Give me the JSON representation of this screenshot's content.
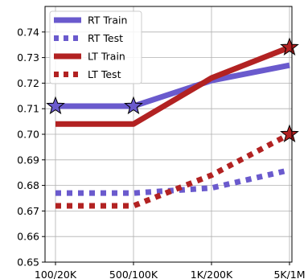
{
  "chart_data": {
    "type": "line",
    "categories": [
      "100/20K",
      "500/100K",
      "1K/200K",
      "5K/1M"
    ],
    "ylim": [
      0.65,
      0.75
    ],
    "yticks": [
      0.65,
      0.66,
      0.67,
      0.68,
      0.69,
      0.7,
      0.71,
      0.72,
      0.73,
      0.74
    ],
    "ytick_labels": [
      "0.65",
      "0.66",
      "0.67",
      "0.68",
      "0.69",
      "0.70",
      "0.71",
      "0.72",
      "0.73",
      "0.74"
    ],
    "grid": true,
    "legend_position": "top-left",
    "series": [
      {
        "name": "RT Train",
        "color": "#6a5acd",
        "style": "solid",
        "values": [
          0.711,
          0.711,
          0.721,
          0.727
        ]
      },
      {
        "name": "RT Test",
        "color": "#6a5acd",
        "style": "dotted",
        "values": [
          0.677,
          0.677,
          0.679,
          0.686
        ]
      },
      {
        "name": "LT Train",
        "color": "#b22222",
        "style": "solid",
        "values": [
          0.704,
          0.704,
          0.722,
          0.734
        ]
      },
      {
        "name": "LT Test",
        "color": "#b22222",
        "style": "dotted",
        "values": [
          0.672,
          0.672,
          0.684,
          0.7
        ]
      }
    ],
    "star_markers": [
      {
        "series": "RT Train",
        "category_index": 0,
        "value": 0.711,
        "color": "#6a5acd"
      },
      {
        "series": "RT Train",
        "category_index": 1,
        "value": 0.711,
        "color": "#6a5acd"
      },
      {
        "series": "LT Train",
        "category_index": 3,
        "value": 0.734,
        "color": "#b22222"
      },
      {
        "series": "LT Test",
        "category_index": 3,
        "value": 0.7,
        "color": "#b22222"
      }
    ]
  }
}
